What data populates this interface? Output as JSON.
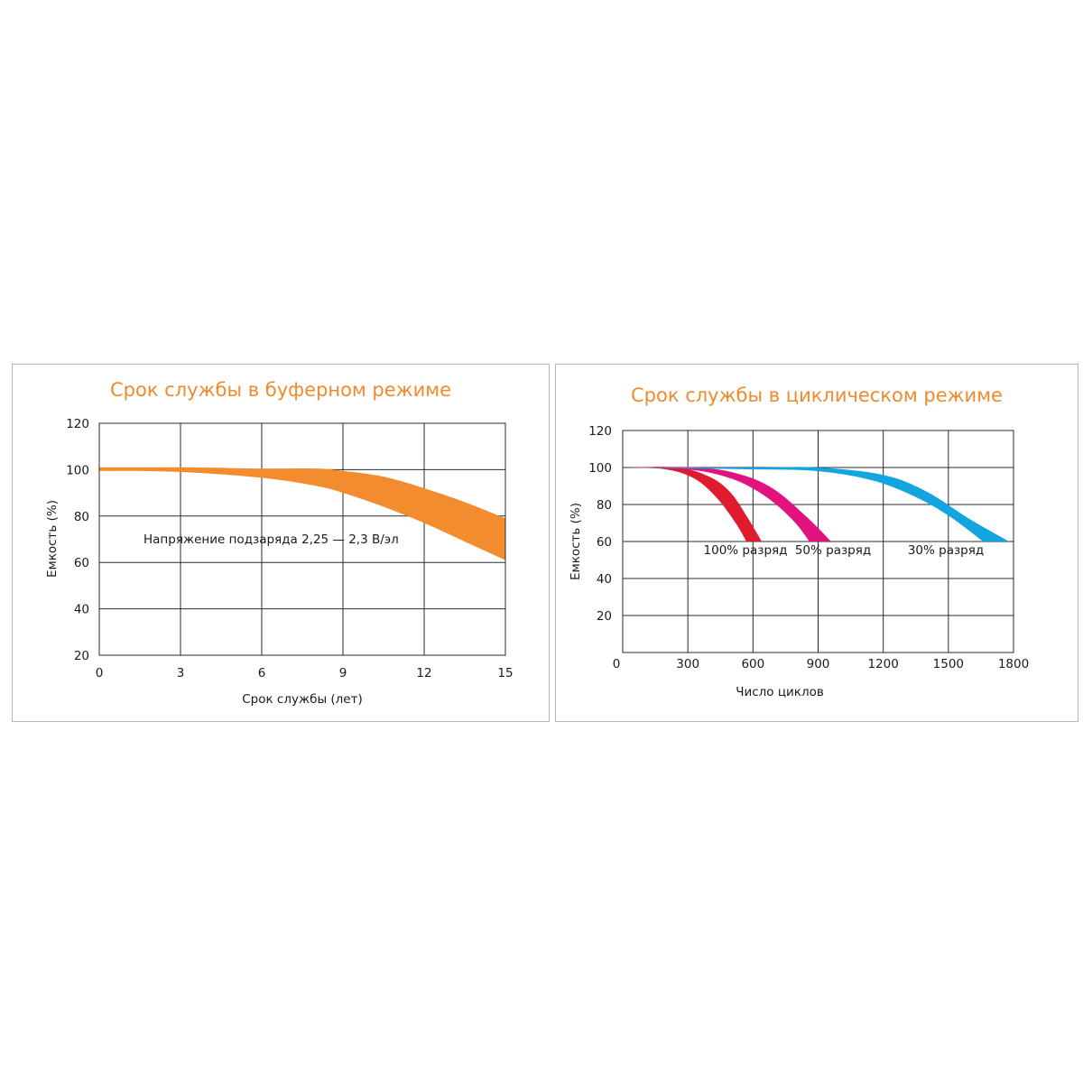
{
  "chart_data": [
    {
      "type": "area",
      "title": "Срок службы в буферном режиме",
      "xlabel": "Срок службы (лет)",
      "ylabel": "Емкость (%)",
      "xlim": [
        0,
        15
      ],
      "ylim": [
        20,
        120
      ],
      "x_ticks": [
        "0",
        "3",
        "6",
        "9",
        "12",
        "15"
      ],
      "y_ticks": [
        "120",
        "100",
        "80",
        "60",
        "40",
        "20"
      ],
      "grid": true,
      "annotation": "Напряжение подзаряда 2,25 — 2,3 В/эл",
      "band": {
        "color": "#f28c2f",
        "upper": [
          [
            0,
            101
          ],
          [
            3,
            101
          ],
          [
            6,
            100.5
          ],
          [
            8,
            100.5
          ],
          [
            9,
            99.5
          ],
          [
            10.5,
            97
          ],
          [
            12,
            92
          ],
          [
            13.5,
            86
          ],
          [
            15,
            79
          ]
        ],
        "lower": [
          [
            0,
            99.5
          ],
          [
            3,
            99
          ],
          [
            6,
            96.5
          ],
          [
            8,
            93
          ],
          [
            9,
            90
          ],
          [
            10.5,
            84
          ],
          [
            12,
            77
          ],
          [
            13.5,
            69
          ],
          [
            15,
            61
          ]
        ]
      }
    },
    {
      "type": "area",
      "title": "Срок службы в циклическом режиме",
      "xlabel": "Число циклов",
      "ylabel": "Емкость (%)",
      "xlim": [
        0,
        1800
      ],
      "ylim": [
        0,
        120
      ],
      "x_ticks": [
        "0",
        "300",
        "600",
        "900",
        "1200",
        "1500",
        "1800"
      ],
      "y_ticks": [
        "120",
        "100",
        "80",
        "60",
        "40",
        "20"
      ],
      "grid": true,
      "series": [
        {
          "name": "100% разряд",
          "color": "#e01a2f",
          "upper": [
            [
              0,
              100
            ],
            [
              250,
              100
            ],
            [
              400,
              95
            ],
            [
              500,
              86
            ],
            [
              580,
              72
            ],
            [
              640,
              60
            ]
          ],
          "lower": [
            [
              0,
              100
            ],
            [
              200,
              99
            ],
            [
              330,
              94
            ],
            [
              430,
              84
            ],
            [
              520,
              70
            ],
            [
              570,
              60
            ]
          ]
        },
        {
          "name": "50% разряд",
          "color": "#e2127f",
          "upper": [
            [
              0,
              100
            ],
            [
              350,
              100
            ],
            [
              550,
              96
            ],
            [
              700,
              88
            ],
            [
              850,
              73
            ],
            [
              960,
              60
            ]
          ],
          "lower": [
            [
              0,
              100
            ],
            [
              300,
              99
            ],
            [
              500,
              94
            ],
            [
              650,
              85
            ],
            [
              780,
              72
            ],
            [
              860,
              60
            ]
          ]
        },
        {
          "name": "30% разряд",
          "color": "#13a5e0",
          "upper": [
            [
              0,
              100
            ],
            [
              600,
              100
            ],
            [
              900,
              100
            ],
            [
              1200,
              96
            ],
            [
              1400,
              87
            ],
            [
              1600,
              72
            ],
            [
              1780,
              60
            ]
          ],
          "lower": [
            [
              0,
              100
            ],
            [
              600,
              99
            ],
            [
              900,
              98
            ],
            [
              1150,
              93
            ],
            [
              1350,
              84
            ],
            [
              1500,
              74
            ],
            [
              1660,
              60
            ]
          ]
        }
      ]
    }
  ]
}
